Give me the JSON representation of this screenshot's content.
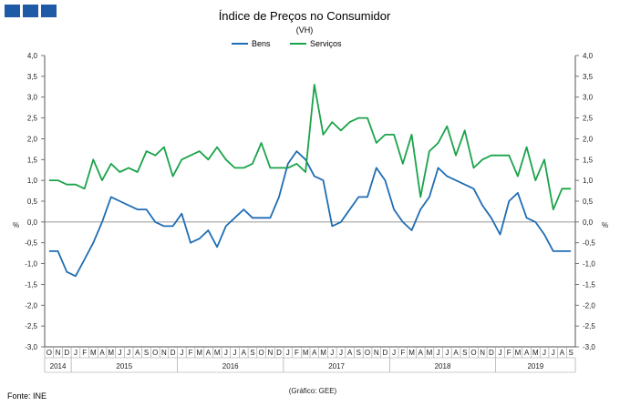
{
  "brand": {
    "color": "#1f5aa6"
  },
  "footer": {
    "source": "Fonte: INE",
    "credit": "(Gráfico: GEE)"
  },
  "chart_data": {
    "type": "line",
    "title": "Índice de Preços no Consumidor",
    "subtitle": "(VH)",
    "ylabel_left": "%",
    "ylabel_right": "%",
    "ylim": [
      -3.0,
      4.0
    ],
    "yticks": [
      "4,0",
      "3,5",
      "3,0",
      "2,5",
      "2,0",
      "1,5",
      "1,0",
      "0,5",
      "0,0",
      "-0,5",
      "-1,0",
      "-1,5",
      "-2,0",
      "-2,5",
      "-3,0"
    ],
    "yticks_right": [
      "4,0",
      "3,5",
      "3,0",
      "2,5",
      "2,0",
      "1,5",
      "1,0",
      "0,5",
      "0,0",
      "-0,5",
      "-1,0",
      "-1,5",
      "-2,0",
      "-2,5",
      "-3,0"
    ],
    "months": [
      "O",
      "N",
      "D",
      "J",
      "F",
      "M",
      "A",
      "M",
      "J",
      "J",
      "A",
      "S",
      "O",
      "N",
      "D",
      "J",
      "F",
      "M",
      "A",
      "M",
      "J",
      "J",
      "A",
      "S",
      "O",
      "N",
      "D",
      "J",
      "F",
      "M",
      "A",
      "M",
      "J",
      "J",
      "A",
      "S",
      "O",
      "N",
      "D",
      "J",
      "F",
      "M",
      "A",
      "M",
      "J",
      "J",
      "A",
      "S",
      "O",
      "N",
      "D",
      "J",
      "F",
      "M",
      "A",
      "M",
      "J",
      "J",
      "A",
      "S"
    ],
    "years": [
      {
        "label": "2014",
        "start": 0,
        "end": 2
      },
      {
        "label": "2015",
        "start": 3,
        "end": 14
      },
      {
        "label": "2016",
        "start": 15,
        "end": 26
      },
      {
        "label": "2017",
        "start": 27,
        "end": 38
      },
      {
        "label": "2018",
        "start": 39,
        "end": 50
      },
      {
        "label": "2019",
        "start": 51,
        "end": 59
      }
    ],
    "series": [
      {
        "name": "Bens",
        "color": "#1f6db4",
        "values": [
          -0.7,
          -0.7,
          -1.2,
          -1.3,
          -0.9,
          -0.5,
          0.0,
          0.6,
          0.5,
          0.4,
          0.3,
          0.3,
          0.0,
          -0.1,
          -0.1,
          0.2,
          -0.5,
          -0.4,
          -0.2,
          -0.6,
          -0.1,
          0.1,
          0.3,
          0.1,
          0.1,
          0.1,
          0.6,
          1.4,
          1.7,
          1.5,
          1.1,
          1.0,
          -0.1,
          0.0,
          0.3,
          0.6,
          0.6,
          1.3,
          1.0,
          0.3,
          0.0,
          -0.2,
          0.3,
          0.6,
          1.3,
          1.1,
          1.0,
          0.9,
          0.8,
          0.4,
          0.1,
          -0.3,
          0.5,
          0.7,
          0.1,
          0.0,
          -0.3,
          -0.7,
          -0.7,
          -0.7
        ]
      },
      {
        "name": "Serviços",
        "color": "#1aa34a",
        "values": [
          1.0,
          1.0,
          0.9,
          0.9,
          0.8,
          1.5,
          1.0,
          1.4,
          1.2,
          1.3,
          1.2,
          1.7,
          1.6,
          1.8,
          1.1,
          1.5,
          1.6,
          1.7,
          1.5,
          1.8,
          1.5,
          1.3,
          1.3,
          1.4,
          1.9,
          1.3,
          1.3,
          1.3,
          1.4,
          1.2,
          3.3,
          2.1,
          2.4,
          2.2,
          2.4,
          2.5,
          2.5,
          1.9,
          2.1,
          2.1,
          1.4,
          2.1,
          0.6,
          1.7,
          1.9,
          2.3,
          1.6,
          2.2,
          1.3,
          1.5,
          1.6,
          1.6,
          1.6,
          1.1,
          1.8,
          1.0,
          1.5,
          0.3,
          0.8,
          0.8
        ]
      }
    ]
  }
}
